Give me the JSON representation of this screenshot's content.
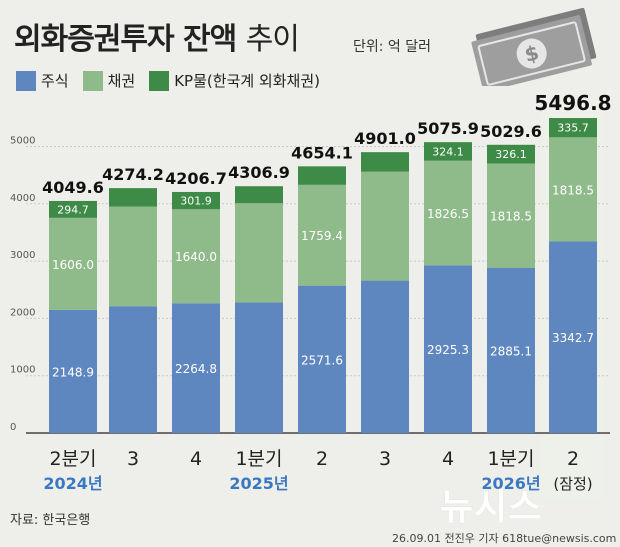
{
  "title_bold": "외화증권투자 잔액",
  "title_light": "추이",
  "unit": "단위: 억 달러",
  "legend": [
    {
      "label": "주식",
      "color": "#5f87bf"
    },
    {
      "label": "채권",
      "color": "#8fbb8a"
    },
    {
      "label": "KP물(한국계 외화채권)",
      "color": "#3e8b48"
    }
  ],
  "source": "자료: 한국은행",
  "credit": "26.09.01 전진우 기자 618tue@newsis.com",
  "logo_text": "뉴시스",
  "money_icon": "dollar-bill-icon",
  "chart_data": {
    "type": "bar",
    "stacked": true,
    "categories": [
      "2분기",
      "3",
      "4",
      "1분기",
      "2",
      "3",
      "4",
      "1분기",
      "2"
    ],
    "year_labels": [
      "2024년",
      "",
      "",
      "2025년",
      "",
      "",
      "",
      "2026년",
      "(잠정)"
    ],
    "series": [
      {
        "name": "주식",
        "color": "#5f87bf",
        "values": [
          2148.9,
          2212.0,
          2264.8,
          2280.0,
          2571.6,
          2660.0,
          2925.3,
          2885.1,
          3342.7
        ],
        "labels": [
          "2148.9",
          "",
          "2264.8",
          "",
          "2571.6",
          "",
          "2925.3",
          "2885.1",
          "3342.7"
        ]
      },
      {
        "name": "채권",
        "color": "#8fbb8a",
        "values": [
          1606.0,
          1740.0,
          1640.0,
          1730.0,
          1759.4,
          1900.0,
          1826.5,
          1818.5,
          1818.5
        ],
        "labels": [
          "1606.0",
          "",
          "1640.0",
          "",
          "1759.4",
          "",
          "1826.5",
          "1818.5",
          "1818.5"
        ]
      },
      {
        "name": "KP물(한국계 외화채권)",
        "color": "#3e8b48",
        "values": [
          294.7,
          322.2,
          301.9,
          296.9,
          323.1,
          341.0,
          324.1,
          326.1,
          335.7
        ],
        "labels": [
          "294.7",
          "",
          "301.9",
          "",
          "",
          "",
          "324.1",
          "326.1",
          "335.7"
        ]
      }
    ],
    "totals": [
      "4049.6",
      "4274.2",
      "4206.7",
      "4306.9",
      "4654.1",
      "4901.0",
      "5075.9",
      "5029.6",
      "5496.8"
    ],
    "y_ticks": [
      "0",
      "1000",
      "2000",
      "3000",
      "4000",
      "5000"
    ],
    "ylim": [
      0,
      5496.8
    ],
    "year_color": "#3a78c2",
    "highlight_color": "#eef0ea"
  }
}
